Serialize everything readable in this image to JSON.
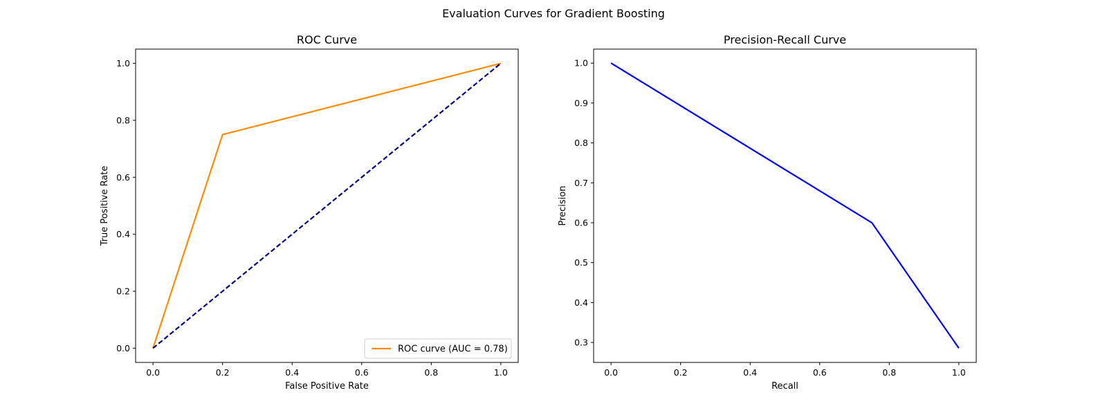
{
  "figure": {
    "title": "Evaluation Curves for Gradient Boosting"
  },
  "chart_data": [
    {
      "type": "line",
      "title": "ROC Curve",
      "xlabel": "False Positive Rate",
      "ylabel": "True Positive Rate",
      "xlim": [
        -0.05,
        1.05
      ],
      "ylim": [
        -0.05,
        1.05
      ],
      "xticks": [
        0.0,
        0.2,
        0.4,
        0.6,
        0.8,
        1.0
      ],
      "yticks": [
        0.0,
        0.2,
        0.4,
        0.6,
        0.8,
        1.0
      ],
      "tick_labels_x": [
        "0.0",
        "0.2",
        "0.4",
        "0.6",
        "0.8",
        "1.0"
      ],
      "tick_labels_y": [
        "0.0",
        "0.2",
        "0.4",
        "0.6",
        "0.8",
        "1.0"
      ],
      "grid": false,
      "legend": {
        "placement": "lower-right"
      },
      "series": [
        {
          "name": "ROC curve (AUC = 0.78)",
          "x": [
            0.0,
            0.2,
            1.0
          ],
          "y": [
            0.0,
            0.75,
            1.0
          ],
          "color": "#ff8c00",
          "dash": "solid",
          "in_legend": true
        },
        {
          "x": [
            0.0,
            1.0
          ],
          "y": [
            0.0,
            1.0
          ],
          "color": "#000080",
          "dash": "dashed",
          "in_legend": false
        }
      ]
    },
    {
      "type": "line",
      "title": "Precision-Recall Curve",
      "xlabel": "Recall",
      "ylabel": "Precision",
      "xlim": [
        -0.05,
        1.05
      ],
      "ylim": [
        0.25,
        1.035
      ],
      "xticks": [
        0.0,
        0.2,
        0.4,
        0.6,
        0.8,
        1.0
      ],
      "yticks": [
        0.3,
        0.4,
        0.5,
        0.6,
        0.7,
        0.8,
        0.9,
        1.0
      ],
      "tick_labels_x": [
        "0.0",
        "0.2",
        "0.4",
        "0.6",
        "0.8",
        "1.0"
      ],
      "tick_labels_y": [
        "0.3",
        "0.4",
        "0.5",
        "0.6",
        "0.7",
        "0.8",
        "0.9",
        "1.0"
      ],
      "grid": false,
      "legend": null,
      "series": [
        {
          "x": [
            0.0,
            0.75,
            1.0
          ],
          "y": [
            1.0,
            0.6,
            0.2857
          ],
          "color": "#0000ff",
          "dash": "solid",
          "in_legend": false
        }
      ]
    }
  ]
}
